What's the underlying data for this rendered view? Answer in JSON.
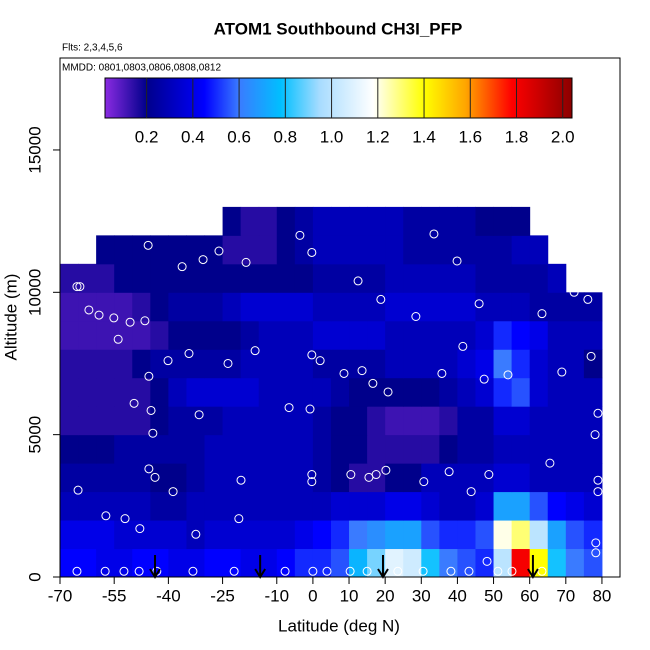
{
  "chart_data": {
    "type": "heatmap",
    "title": "ATOM1 Southbound CH3I_PFP",
    "subtitle": "Flts: 2,3,4,5,6",
    "annotation": "MMDD: 0801,0803,0806,0808,0812",
    "x_label": "Latitude (deg N)",
    "y_label": "Altitude (m)",
    "xlim": [
      -70,
      85
    ],
    "ylim": [
      0,
      18230
    ],
    "xticks": [
      -70,
      -55,
      -40,
      -25,
      -10,
      0,
      10,
      20,
      30,
      40,
      50,
      60,
      70,
      80
    ],
    "yticks": [
      0,
      5000,
      10000,
      15000
    ],
    "lat_bins": [
      -70,
      -65,
      -60,
      -55,
      -50,
      -45,
      -40,
      -35,
      -30,
      -25,
      -20,
      -15,
      -10,
      -5,
      0,
      5,
      10,
      15,
      20,
      25,
      30,
      35,
      40,
      45,
      50,
      55,
      60,
      65,
      70,
      75,
      80
    ],
    "alt_bins": [
      0,
      1000,
      2000,
      3000,
      4000,
      5000,
      6000,
      7000,
      8000,
      9000,
      10000,
      11000,
      12000,
      13000
    ],
    "z": [
      [
        0.45,
        0.45,
        0.4,
        0.4,
        0.45,
        0.45,
        0.4,
        0.4,
        0.45,
        0.45,
        0.4,
        0.4,
        0.45,
        0.5,
        0.5,
        0.55,
        0.75,
        0.9,
        1.1,
        1.05,
        0.8,
        0.6,
        0.55,
        0.5,
        1.0,
        1.8,
        1.4,
        0.8,
        0.6,
        0.55
      ],
      [
        0.4,
        0.4,
        0.4,
        0.35,
        0.35,
        0.35,
        0.35,
        0.3,
        0.35,
        0.35,
        0.35,
        0.35,
        0.35,
        0.4,
        0.45,
        0.5,
        0.6,
        0.65,
        0.7,
        0.7,
        0.55,
        0.5,
        0.5,
        0.55,
        1.2,
        1.3,
        1.0,
        0.7,
        0.55,
        0.5
      ],
      [
        0.3,
        0.3,
        0.3,
        0.3,
        0.3,
        0.25,
        0.25,
        0.3,
        0.3,
        0.3,
        0.3,
        0.3,
        0.3,
        0.3,
        0.3,
        0.35,
        0.35,
        0.35,
        0.4,
        0.4,
        0.35,
        0.3,
        0.3,
        0.35,
        0.7,
        0.7,
        0.55,
        0.45,
        0.4,
        0.35
      ],
      [
        0.25,
        0.25,
        0.25,
        0.25,
        0.25,
        0.2,
        0.2,
        0.25,
        0.3,
        0.3,
        0.3,
        0.3,
        0.3,
        0.3,
        0.25,
        0.2,
        0.15,
        0.15,
        0.2,
        0.2,
        0.3,
        0.3,
        0.3,
        0.3,
        0.35,
        0.35,
        0.3,
        0.3,
        0.3,
        0.3
      ],
      [
        0.2,
        0.2,
        0.2,
        0.25,
        0.25,
        0.25,
        0.25,
        0.25,
        0.3,
        0.3,
        0.3,
        0.3,
        0.3,
        0.3,
        0.25,
        0.2,
        0.2,
        0.15,
        0.15,
        0.15,
        0.15,
        0.2,
        0.25,
        0.25,
        0.3,
        0.3,
        0.3,
        0.3,
        0.3,
        0.3
      ],
      [
        0.15,
        0.15,
        0.15,
        0.15,
        0.15,
        0.2,
        0.25,
        0.25,
        0.25,
        0.3,
        0.3,
        0.3,
        0.3,
        0.3,
        0.25,
        0.2,
        0.2,
        0.15,
        0.12,
        0.12,
        0.12,
        0.15,
        0.25,
        0.25,
        0.35,
        0.35,
        0.3,
        0.3,
        0.3,
        0.3
      ],
      [
        0.15,
        0.15,
        0.15,
        0.15,
        0.15,
        0.2,
        0.3,
        0.35,
        0.35,
        0.35,
        0.35,
        0.3,
        0.3,
        0.3,
        0.3,
        0.25,
        0.2,
        0.2,
        0.2,
        0.2,
        0.2,
        0.25,
        0.3,
        0.35,
        0.5,
        0.55,
        0.35,
        0.3,
        0.3,
        0.3
      ],
      [
        0.15,
        0.15,
        0.15,
        0.15,
        0.2,
        0.25,
        0.25,
        0.25,
        0.25,
        0.25,
        0.3,
        0.3,
        0.3,
        0.3,
        0.25,
        0.25,
        0.25,
        0.25,
        0.3,
        0.3,
        0.3,
        0.3,
        0.35,
        0.4,
        0.6,
        0.5,
        0.35,
        0.3,
        0.3,
        0.2
      ],
      [
        0.12,
        0.12,
        0.12,
        0.12,
        0.12,
        0.15,
        0.2,
        0.2,
        0.2,
        0.2,
        0.25,
        0.3,
        0.3,
        0.3,
        0.35,
        0.35,
        0.35,
        0.35,
        0.3,
        0.3,
        0.3,
        0.3,
        0.3,
        0.35,
        0.5,
        0.45,
        0.4,
        0.3,
        0.3,
        0.3
      ],
      [
        0.12,
        0.12,
        0.12,
        0.12,
        0.15,
        0.2,
        0.25,
        0.25,
        0.25,
        0.3,
        0.35,
        0.35,
        0.35,
        0.35,
        0.3,
        0.3,
        0.3,
        0.3,
        0.35,
        0.35,
        0.35,
        0.35,
        0.35,
        0.3,
        0.3,
        0.3,
        0.25,
        0.25,
        0.25,
        0.25
      ],
      [
        0.15,
        0.15,
        0.15,
        0.2,
        0.2,
        0.2,
        0.2,
        0.2,
        0.2,
        0.2,
        0.2,
        0.2,
        0.2,
        0.2,
        0.25,
        0.25,
        0.25,
        0.25,
        0.3,
        0.3,
        0.3,
        0.3,
        0.3,
        0.25,
        0.25,
        0.25,
        0.25,
        0.3,
        null,
        null
      ],
      [
        null,
        null,
        0.2,
        0.2,
        0.2,
        0.2,
        0.2,
        0.2,
        0.2,
        0.15,
        0.15,
        0.15,
        0.2,
        0.25,
        0.3,
        0.3,
        0.3,
        0.3,
        0.3,
        0.25,
        0.25,
        0.25,
        0.25,
        0.25,
        0.25,
        0.3,
        0.3,
        null,
        null,
        null
      ],
      [
        null,
        null,
        null,
        null,
        null,
        null,
        null,
        null,
        null,
        0.2,
        0.15,
        0.15,
        0.2,
        0.25,
        0.3,
        0.3,
        0.3,
        0.3,
        0.3,
        0.25,
        0.25,
        0.25,
        0.25,
        0.2,
        0.2,
        0.2,
        null,
        null,
        null,
        null
      ]
    ],
    "clim": [
      0.02,
      2.04
    ],
    "cticks": [
      0.2,
      0.4,
      0.6,
      0.8,
      {
        "value": 1.0,
        "label": "1.0"
      },
      1.2,
      1.4,
      1.6,
      1.8,
      {
        "value": 2.0,
        "label": "2.0"
      }
    ],
    "colorscale": [
      [
        0.02,
        "#8a2be2"
      ],
      [
        0.2,
        "#00008b"
      ],
      [
        0.45,
        "#0000ff"
      ],
      [
        0.6,
        "#3a7bff"
      ],
      [
        0.78,
        "#00bfff"
      ],
      [
        0.95,
        "#a8dcff"
      ],
      [
        1.18,
        "#ffffff"
      ],
      [
        1.4,
        "#ffff00"
      ],
      [
        1.58,
        "#ffa500"
      ],
      [
        1.78,
        "#ff0000"
      ],
      [
        2.04,
        "#8b0000"
      ]
    ],
    "samples": {
      "x": [
        -65.3,
        -64.5,
        -65.0,
        -62.0,
        -59.2,
        -55.1,
        -50.6,
        -46.5,
        -53.9,
        -45.6,
        -36.2,
        -30.4,
        -26.0,
        -18.5,
        -3.6,
        -0.3,
        12.5,
        26.3,
        33.5,
        39.9,
        67.6,
        72.3,
        76.1,
        63.4,
        46.0,
        28.5,
        18.8,
        41.5,
        -34.3,
        -40.1,
        -16.0,
        -0.3,
        2.0,
        -45.4,
        -23.5,
        8.6,
        13.6,
        16.6,
        20.8,
        35.7,
        47.4,
        54.0,
        68.9,
        77.0,
        -49.5,
        -44.8,
        -31.5,
        -6.6,
        -0.8,
        78.9,
        -44.3,
        78.1,
        -45.4,
        -43.7,
        -19.9,
        -38.7,
        -0.3,
        -0.3,
        10.5,
        15.5,
        17.5,
        20.2,
        30.7,
        37.7,
        43.8,
        48.7,
        65.6,
        78.9,
        78.9,
        -57.3,
        -52.0,
        -47.9,
        -20.5,
        -32.4,
        78.3,
        78.3,
        -65.3,
        -57.5,
        -52.3,
        -48.1,
        -43.2,
        -33.2,
        -21.8,
        -7.7,
        0.0,
        3.9,
        10.3,
        15.0,
        23.5,
        30.5,
        38.2,
        43.2,
        51.2,
        55.1,
        63.4,
        48.2
      ],
      "y": [
        10200,
        10200,
        3050,
        9380,
        9200,
        9100,
        8950,
        9000,
        8350,
        11650,
        10900,
        11150,
        11450,
        11050,
        12000,
        11400,
        10400,
        13300,
        12050,
        11100,
        11400,
        10000,
        9750,
        9250,
        9600,
        9150,
        9750,
        8100,
        7850,
        7600,
        7950,
        7800,
        7600,
        7050,
        7500,
        7150,
        7250,
        6800,
        6500,
        7150,
        6950,
        7100,
        7200,
        7750,
        6100,
        5850,
        5700,
        5950,
        5900,
        5750,
        5050,
        5000,
        3800,
        3500,
        3400,
        3000,
        3600,
        3350,
        3600,
        3500,
        3600,
        3750,
        3350,
        3700,
        3000,
        3600,
        4000,
        3400,
        3000,
        2150,
        2050,
        1700,
        2050,
        1500,
        1200,
        850,
        200,
        200,
        200,
        200,
        200,
        200,
        200,
        200,
        200,
        200,
        200,
        200,
        200,
        200,
        200,
        200,
        200,
        200,
        200,
        550
      ]
    },
    "arrows_lat": [
      -43.7,
      -14.6,
      19.4,
      60.9
    ]
  }
}
